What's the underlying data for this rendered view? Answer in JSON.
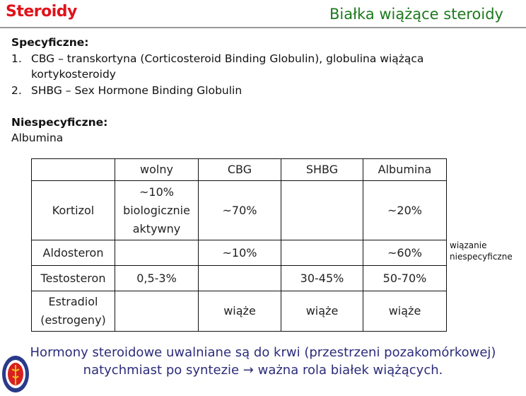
{
  "header": {
    "section": "Steroidy",
    "title": "Białka wiążące steroidy"
  },
  "specific": {
    "heading": "Specyficzne:",
    "items": [
      {
        "num": "1.",
        "text": "CBG – transkortyna (Corticosteroid Binding Globulin), globulina wiążąca",
        "cont": "kortykosteroidy"
      },
      {
        "num": "2.",
        "text": "SHBG – Sex Hormone Binding Globulin"
      }
    ]
  },
  "nonspecific": {
    "heading": "Niespecyficzne:",
    "text": "Albumina"
  },
  "table": {
    "headers": [
      "",
      "wolny",
      "CBG",
      "SHBG",
      "Albumina"
    ],
    "rows": [
      [
        "Kortizol",
        "~10%\nbiologicznie\naktywny",
        "~70%",
        "",
        "~20%"
      ],
      [
        "Aldosteron",
        "",
        "~10%",
        "",
        "~60%"
      ],
      [
        "Testosteron",
        "0,5-3%",
        "",
        "30-45%",
        "50-70%"
      ],
      [
        "Estradiol\n(estrogeny)",
        "",
        "wiąże",
        "wiąże",
        "wiąże"
      ]
    ]
  },
  "side_note": "wiązanie\nniespecyficzne",
  "footer": {
    "line1": "Hormony steroidowe uwalniane są do krwi (przestrzeni pozakomórkowej)",
    "line2": "natychmiast po syntezie → ważna rola białek wiążących."
  },
  "colors": {
    "section": "#e0121a",
    "title": "#1c7a1c",
    "footer": "#2c2c7a"
  }
}
